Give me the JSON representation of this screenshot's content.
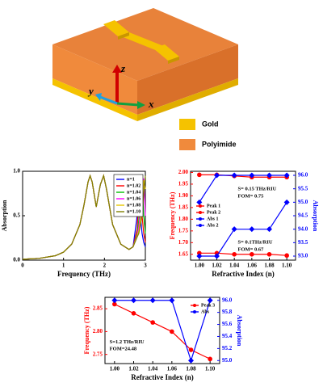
{
  "diagram": {
    "axis_z": "z",
    "axis_y": "y",
    "axis_x": "x",
    "legend_gold": "Gold",
    "legend_polyimide": "Polyimide"
  },
  "chart_data": [
    {
      "type": "line",
      "xlabel": "Frequency (THz)",
      "ylabel": "Absorption",
      "x": [
        0,
        0.4,
        0.8,
        1.0,
        1.2,
        1.4,
        1.5,
        1.6,
        1.65,
        1.7,
        1.8,
        1.9,
        1.98,
        2.05,
        2.2,
        2.4,
        2.6,
        2.7,
        2.8,
        2.84,
        2.88,
        2.92,
        2.96,
        3.0
      ],
      "xlim": [
        0,
        3
      ],
      "xticks": [
        0,
        1,
        2,
        3
      ],
      "ylim": [
        0,
        1
      ],
      "yticks": [
        {
          "value": 0,
          "label": "0.0"
        },
        {
          "value": 0.5,
          "label": "0.5"
        },
        {
          "value": 1,
          "label": "1.0"
        }
      ],
      "legend": "upper right",
      "series": [
        {
          "name": "n=1",
          "color": "#0000ff",
          "values": [
            0.01,
            0.02,
            0.05,
            0.09,
            0.18,
            0.4,
            0.62,
            0.88,
            0.95,
            0.88,
            0.6,
            0.85,
            0.95,
            0.8,
            0.4,
            0.18,
            0.12,
            0.15,
            0.5,
            0.92,
            0.5,
            0.3,
            0.2,
            0.15
          ]
        },
        {
          "name": "n=1.02",
          "color": "#ff0000",
          "values": [
            0.01,
            0.02,
            0.05,
            0.09,
            0.18,
            0.4,
            0.62,
            0.88,
            0.95,
            0.88,
            0.6,
            0.85,
            0.95,
            0.8,
            0.4,
            0.18,
            0.12,
            0.15,
            0.35,
            0.7,
            0.92,
            0.5,
            0.3,
            0.2
          ]
        },
        {
          "name": "n=1.04",
          "color": "#00c000",
          "values": [
            0.01,
            0.02,
            0.05,
            0.09,
            0.18,
            0.4,
            0.62,
            0.88,
            0.95,
            0.88,
            0.6,
            0.85,
            0.95,
            0.8,
            0.4,
            0.18,
            0.12,
            0.15,
            0.3,
            0.45,
            0.8,
            0.92,
            0.5,
            0.3
          ]
        },
        {
          "name": "n=1.06",
          "color": "#ff00ff",
          "values": [
            0.01,
            0.02,
            0.05,
            0.09,
            0.18,
            0.4,
            0.62,
            0.88,
            0.95,
            0.88,
            0.6,
            0.85,
            0.95,
            0.8,
            0.4,
            0.18,
            0.12,
            0.15,
            0.28,
            0.38,
            0.55,
            0.85,
            0.92,
            0.5
          ]
        },
        {
          "name": "n=1.08",
          "color": "#e6c800",
          "values": [
            0.01,
            0.02,
            0.05,
            0.09,
            0.18,
            0.4,
            0.62,
            0.88,
            0.95,
            0.88,
            0.6,
            0.85,
            0.95,
            0.8,
            0.4,
            0.18,
            0.12,
            0.15,
            0.27,
            0.33,
            0.45,
            0.6,
            0.9,
            0.8
          ]
        },
        {
          "name": "n=1.10",
          "color": "#808000",
          "values": [
            0.01,
            0.02,
            0.05,
            0.09,
            0.18,
            0.4,
            0.62,
            0.88,
            0.95,
            0.88,
            0.6,
            0.85,
            0.95,
            0.8,
            0.4,
            0.18,
            0.12,
            0.15,
            0.26,
            0.3,
            0.4,
            0.5,
            0.75,
            0.95
          ]
        }
      ]
    },
    {
      "type": "line",
      "xlabel": "Refractive Index (n)",
      "ylabel": "Frequency (THz)",
      "y2label": "Absorption",
      "x": [
        1.0,
        1.02,
        1.04,
        1.06,
        1.08,
        1.1
      ],
      "xlim": [
        0.99,
        1.11
      ],
      "xticks": [
        {
          "value": 1,
          "label": "1.00"
        },
        {
          "value": 1.02,
          "label": "1.02"
        },
        {
          "value": 1.04,
          "label": "1.04"
        },
        {
          "value": 1.06,
          "label": "1.06"
        },
        {
          "value": 1.08,
          "label": "1.08"
        },
        {
          "value": 1.1,
          "label": "1.10"
        }
      ],
      "ylim": [
        1.625,
        2.005
      ],
      "yticks": [
        1.65,
        {
          "value": 1.7,
          "label": "1.70"
        },
        1.75,
        {
          "value": 1.8,
          "label": "1.80"
        },
        1.85,
        {
          "value": 1.9,
          "label": "1.90"
        },
        1.95,
        {
          "value": 2,
          "label": "2.00"
        }
      ],
      "y2lim": [
        92.85,
        96.15
      ],
      "y2ticks": [
        {
          "value": 93,
          "label": "93.0"
        },
        93.5,
        {
          "value": 94,
          "label": "94.0"
        },
        94.5,
        {
          "value": 95,
          "label": "95.0"
        },
        95.5,
        {
          "value": 96,
          "label": "96.0"
        }
      ],
      "legend": "center left",
      "annotations": [
        "S= 0.15 THz/RIU",
        "FOM= 0.75",
        "S= 0.1THz/RIU",
        "FOM= 0.67"
      ],
      "series": [
        {
          "name": "Peak 1",
          "color": "#ff0000",
          "marker": "circle",
          "values": [
            1.99,
            1.99,
            1.985,
            1.98,
            1.98,
            1.98
          ]
        },
        {
          "name": "Peak 2",
          "color": "#ff0000",
          "marker": "circle",
          "values": [
            1.655,
            1.655,
            1.65,
            1.65,
            1.65,
            1.645
          ]
        },
        {
          "name": "Abs 1",
          "color": "#0000ff",
          "marker": "diamond",
          "axis": "y2",
          "values": [
            95.0,
            96.0,
            96.0,
            96.0,
            96.0,
            96.0
          ]
        },
        {
          "name": "Abs 2",
          "color": "#0000ff",
          "marker": "diamond",
          "axis": "y2",
          "values": [
            93.0,
            93.0,
            94.0,
            94.0,
            94.0,
            95.0
          ]
        }
      ]
    },
    {
      "type": "line",
      "xlabel": "Refractive Index (n)",
      "ylabel": "Frequency (THz)",
      "y2label": "Absorption",
      "x": [
        1.0,
        1.02,
        1.04,
        1.06,
        1.08,
        1.1
      ],
      "xlim": [
        0.99,
        1.11
      ],
      "xticks": [
        {
          "value": 1,
          "label": "1.00"
        },
        {
          "value": 1.02,
          "label": "1.02"
        },
        {
          "value": 1.04,
          "label": "1.04"
        },
        {
          "value": 1.06,
          "label": "1.06"
        },
        {
          "value": 1.08,
          "label": "1.08"
        },
        {
          "value": 1.1,
          "label": "1.10"
        }
      ],
      "ylim": [
        2.73,
        2.875
      ],
      "yticks": [
        2.75,
        {
          "value": 2.8,
          "label": "2.80"
        },
        2.85
      ],
      "y2lim": [
        94.95,
        96.05
      ],
      "y2ticks": [
        {
          "value": 95,
          "label": "95.0"
        },
        95.2,
        95.4,
        95.6,
        95.8,
        {
          "value": 96,
          "label": "96.0"
        }
      ],
      "legend": "upper right",
      "annotations": [
        "S=1.2 THz/RIU",
        "FOM=24.48"
      ],
      "series": [
        {
          "name": "Peak 3",
          "color": "#ff0000",
          "marker": "circle",
          "values": [
            2.86,
            2.84,
            2.82,
            2.8,
            2.76,
            2.74
          ]
        },
        {
          "name": "Abs",
          "color": "#0000ff",
          "marker": "diamond",
          "axis": "y2",
          "values": [
            96.0,
            96.0,
            96.0,
            96.0,
            95.0,
            96.0
          ]
        }
      ]
    }
  ]
}
